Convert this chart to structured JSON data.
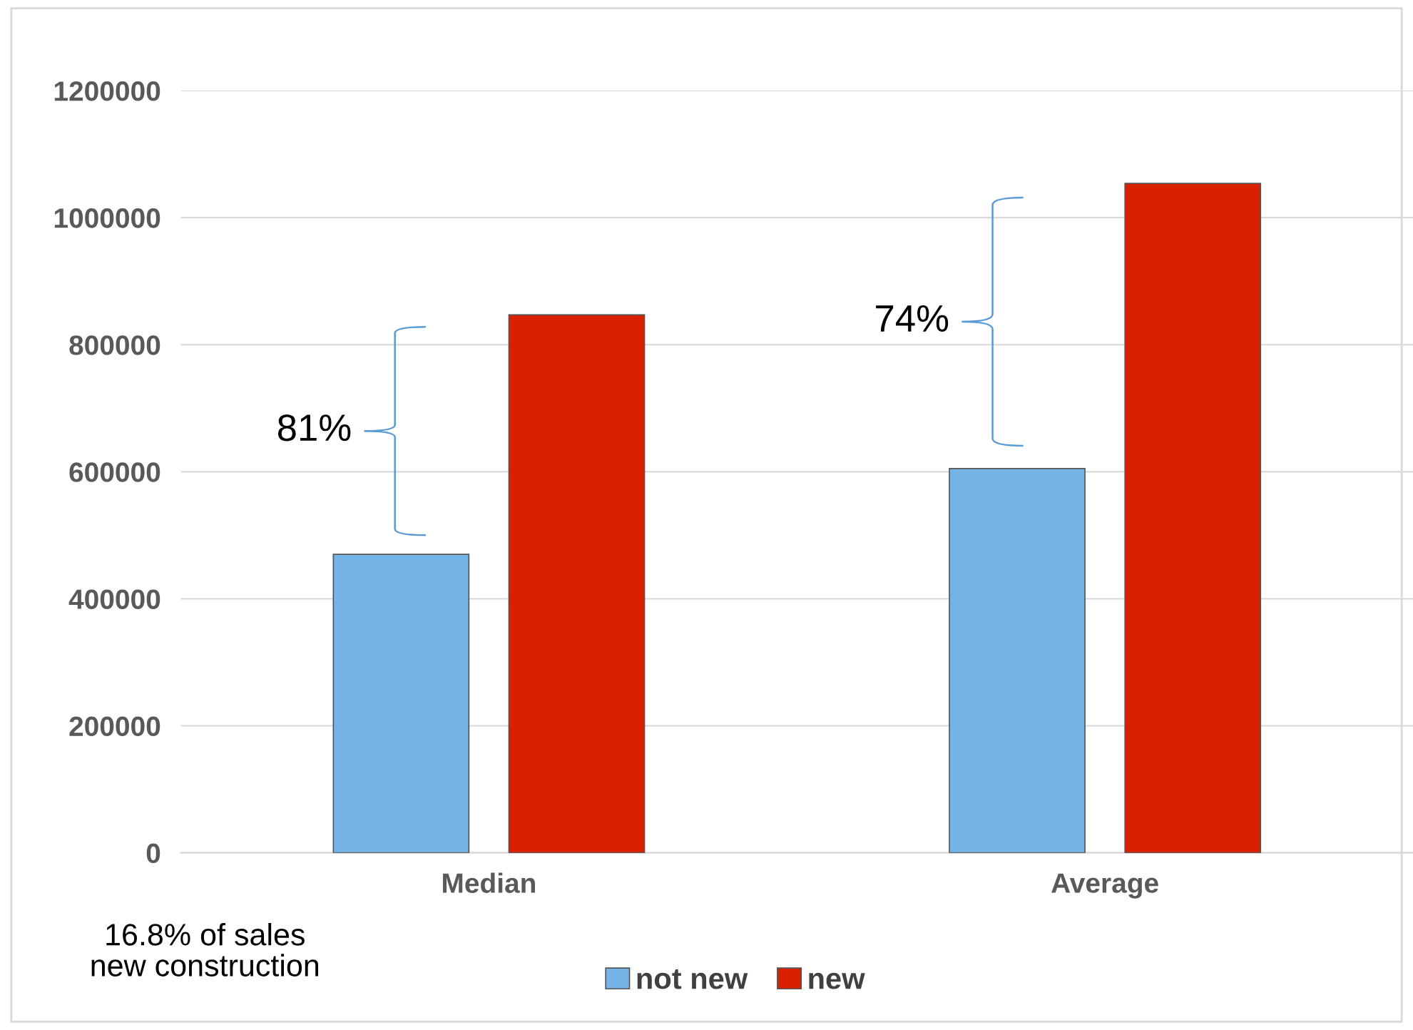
{
  "chart_data": {
    "type": "bar",
    "categories": [
      "Median",
      "Average"
    ],
    "series": [
      {
        "name": "not new",
        "color": "#74b4e6",
        "values": [
          470000,
          605000
        ]
      },
      {
        "name": "new",
        "color": "#d92000",
        "values": [
          847000,
          1054000
        ]
      }
    ],
    "ylim": [
      0,
      1200000
    ],
    "yticks": [
      0,
      200000,
      400000,
      600000,
      800000,
      1000000,
      1200000
    ],
    "grid": "y",
    "legend": "bottom",
    "annotations": [
      "81%",
      "74%",
      "16.8% of sales\nnew construction"
    ]
  }
}
